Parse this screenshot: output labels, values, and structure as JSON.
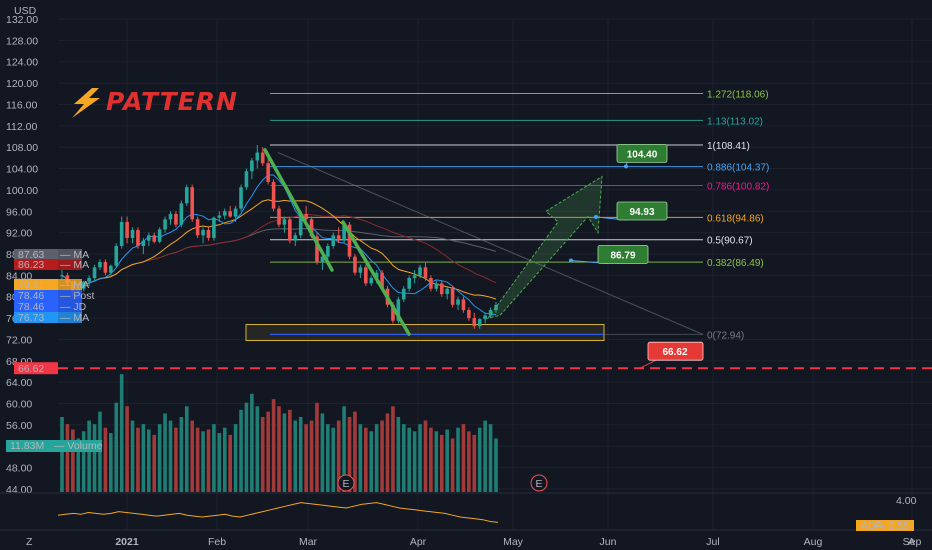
{
  "chart_data": {
    "type": "candlestick",
    "currency": "USD",
    "brand": "PATTERN",
    "y_axis_ticks": [
      "132.00",
      "128.00",
      "124.00",
      "120.00",
      "116.00",
      "112.00",
      "108.00",
      "104.00",
      "100.00",
      "96.00",
      "92.00",
      "88.00",
      "84.00",
      "80.00",
      "76.00",
      "72.00",
      "68.00",
      "64.00",
      "60.00",
      "56.00",
      "52.00",
      "48.00",
      "44.00"
    ],
    "x_axis_ticks": [
      "2021",
      "Feb",
      "Mar",
      "Apr",
      "May",
      "Jun",
      "Jul",
      "Aug",
      "Sep"
    ],
    "fib_levels": [
      {
        "label": "1.272(118.06)",
        "price": 118.06,
        "color": "#8bc34a"
      },
      {
        "label": "1.13(113.02)",
        "price": 113.02,
        "color": "#26a69a"
      },
      {
        "label": "1(108.41)",
        "price": 108.41,
        "color": "#e0e3eb"
      },
      {
        "label": "0.886(104.37)",
        "price": 104.37,
        "color": "#42a5f5"
      },
      {
        "label": "0.786(100.82)",
        "price": 100.82,
        "color": "#e91e8c"
      },
      {
        "label": "0.618(94.86)",
        "price": 94.86,
        "color": "#f5a623"
      },
      {
        "label": "0.5(90.67)",
        "price": 90.67,
        "color": "#e0e3eb"
      },
      {
        "label": "0.382(86.49)",
        "price": 86.49,
        "color": "#8bc34a"
      },
      {
        "label": "0(72.94)",
        "price": 72.94,
        "color": "#787b86"
      }
    ],
    "targets": [
      {
        "label": "104.40",
        "price": 104.4,
        "color": "#2e7d32"
      },
      {
        "label": "94.93",
        "price": 94.93,
        "color": "#2e7d32"
      },
      {
        "label": "86.79",
        "price": 86.79,
        "color": "#2e7d32"
      }
    ],
    "stop_level": {
      "label": "66.62",
      "price": 66.62,
      "color": "#f23645"
    },
    "price_tags": [
      {
        "value": "87.63",
        "name": "MA",
        "color": "#5d606b"
      },
      {
        "value": "86.23",
        "name": "MA",
        "color": "#b71c1c"
      },
      {
        "value": "79.31",
        "name": "MA",
        "color": "#f5a623"
      },
      {
        "value": "78.46",
        "name": "Post",
        "color": "#2962ff"
      },
      {
        "value": "78.46",
        "name": "JD",
        "color": "#2962ff"
      },
      {
        "value": "76.73",
        "name": "MA",
        "color": "#2196f3"
      }
    ],
    "stop_tag": "66.62",
    "volume_tag": {
      "value": "11.83M",
      "name": "Volume"
    },
    "earnings_markers": [
      "E",
      "E"
    ],
    "indicator_tick": "4.00",
    "adr_label": "ADR",
    "adr_value": "2.55",
    "scale_label_left": "Z",
    "scale_label_right": "A",
    "candles": [
      [
        84,
        85,
        83,
        84
      ],
      [
        84,
        84.5,
        82,
        82.5
      ],
      [
        82.5,
        83,
        80,
        81
      ],
      [
        81,
        82,
        80.5,
        81.5
      ],
      [
        81.5,
        83,
        81,
        82.8
      ],
      [
        82.8,
        84,
        82,
        83.5
      ],
      [
        83.5,
        86,
        83,
        85.5
      ],
      [
        85.5,
        87,
        85,
        86.5
      ],
      [
        86.5,
        87,
        84,
        84.5
      ],
      [
        84.5,
        86,
        84,
        85.8
      ],
      [
        85.8,
        90,
        85.5,
        89.5
      ],
      [
        89.5,
        95,
        89,
        94
      ],
      [
        94,
        95,
        90,
        91
      ],
      [
        91,
        93,
        90,
        92.5
      ],
      [
        92.5,
        93,
        89,
        89.5
      ],
      [
        89.5,
        91,
        88,
        90.5
      ],
      [
        90.5,
        92,
        89.5,
        91.5
      ],
      [
        91.5,
        92,
        90,
        90.3
      ],
      [
        90.3,
        93,
        90,
        92.6
      ],
      [
        92.6,
        95,
        92,
        94.5
      ],
      [
        94.5,
        96,
        93.5,
        95.5
      ],
      [
        95.5,
        96,
        93,
        93.5
      ],
      [
        93.5,
        98,
        93,
        97.5
      ],
      [
        97.5,
        101,
        97,
        100.5
      ],
      [
        100.5,
        101,
        94,
        94.5
      ],
      [
        94.5,
        95,
        91,
        91.5
      ],
      [
        91.5,
        93,
        90,
        92.5
      ],
      [
        92.5,
        93,
        90.5,
        91
      ],
      [
        91,
        95,
        90.5,
        94.8
      ],
      [
        94.8,
        96,
        94,
        95.2
      ],
      [
        95.2,
        96.5,
        94.5,
        96
      ],
      [
        96,
        97,
        94.8,
        95
      ],
      [
        95,
        97,
        94,
        96.5
      ],
      [
        96.5,
        101,
        96,
        100.5
      ],
      [
        100.5,
        104,
        100,
        103.5
      ],
      [
        103.5,
        106,
        102,
        105.5
      ],
      [
        105.5,
        108.4,
        104,
        107
      ],
      [
        107,
        108,
        104.5,
        105
      ],
      [
        105,
        106,
        101,
        101.5
      ],
      [
        101.5,
        102,
        96,
        96.5
      ],
      [
        96.5,
        97,
        93,
        93.5
      ],
      [
        93.5,
        95,
        92,
        94.5
      ],
      [
        94.5,
        95,
        90,
        90.5
      ],
      [
        90.5,
        92,
        89.5,
        91.5
      ],
      [
        91.5,
        96,
        91,
        95.5
      ],
      [
        95.5,
        97,
        94,
        94.5
      ],
      [
        94.5,
        95,
        91,
        91.3
      ],
      [
        91.3,
        92,
        86,
        86.5
      ],
      [
        86.5,
        88,
        85,
        87.5
      ],
      [
        87.5,
        90,
        87,
        89.5
      ],
      [
        89.5,
        92,
        89,
        91.5
      ],
      [
        91.5,
        93,
        90,
        90.5
      ],
      [
        90.5,
        94,
        90,
        93.5
      ],
      [
        93.5,
        94,
        87,
        87.5
      ],
      [
        87.5,
        88,
        84,
        84.5
      ],
      [
        84.5,
        86,
        83.5,
        85.5
      ],
      [
        85.5,
        86,
        82,
        82.5
      ],
      [
        82.5,
        84,
        82,
        83.5
      ],
      [
        83.5,
        85,
        82.5,
        84.5
      ],
      [
        84.5,
        85,
        81,
        81.5
      ],
      [
        81.5,
        82,
        78,
        78.5
      ],
      [
        78.5,
        79,
        75,
        75.5
      ],
      [
        75.5,
        80,
        75,
        79.5
      ],
      [
        79.5,
        82,
        79,
        81.5
      ],
      [
        81.5,
        84,
        81,
        83.5
      ],
      [
        83.5,
        85,
        82.5,
        84
      ],
      [
        84,
        86,
        83.5,
        85.5
      ],
      [
        85.5,
        86.5,
        83,
        83.5
      ],
      [
        83.5,
        84,
        81,
        81.5
      ],
      [
        81.5,
        83,
        81,
        82.5
      ],
      [
        82.5,
        83,
        80,
        80.5
      ],
      [
        80.5,
        82,
        79.5,
        81.5
      ],
      [
        81.5,
        82,
        78,
        78.5
      ],
      [
        78.5,
        80,
        77.5,
        79.5
      ],
      [
        79.5,
        80,
        77,
        77.5
      ],
      [
        77.5,
        78,
        75.5,
        76
      ],
      [
        76,
        77,
        74,
        74.5
      ],
      [
        74.5,
        76,
        74,
        75.8
      ],
      [
        75.8,
        77,
        75,
        76.5
      ],
      [
        76.5,
        78,
        76,
        77.5
      ],
      [
        77.5,
        79,
        77,
        78.46
      ]
    ],
    "volume": [
      42,
      38,
      35,
      30,
      34,
      40,
      38,
      45,
      36,
      33,
      50,
      66,
      48,
      40,
      36,
      38,
      35,
      32,
      38,
      44,
      40,
      36,
      42,
      48,
      40,
      36,
      34,
      35,
      38,
      33,
      36,
      32,
      38,
      46,
      50,
      55,
      48,
      42,
      45,
      52,
      48,
      44,
      46,
      40,
      42,
      38,
      40,
      50,
      44,
      38,
      36,
      40,
      48,
      42,
      45,
      38,
      36,
      34,
      38,
      40,
      44,
      48,
      42,
      38,
      36,
      34,
      38,
      40,
      36,
      34,
      32,
      35,
      30,
      36,
      38,
      34,
      32,
      36,
      40,
      38,
      30
    ],
    "ranges": {
      "price": [
        44,
        134
      ],
      "volume_max": 70
    }
  }
}
